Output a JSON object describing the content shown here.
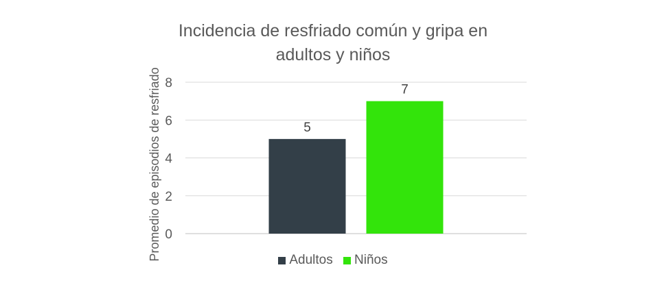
{
  "chart_data": {
    "type": "bar",
    "title_lines": [
      "Incidencia de resfriado común y gripa en",
      "adultos y niños"
    ],
    "xlabel": "",
    "ylabel": "Promedio de episodios de resfriado",
    "categories": [
      "Adultos",
      "Niños"
    ],
    "values": [
      5,
      7
    ],
    "colors": [
      "#333f48",
      "#33e40b"
    ],
    "ylim": [
      0,
      8
    ],
    "yticks": [
      "0",
      "2",
      "4",
      "6",
      "8"
    ],
    "data_labels": [
      "5",
      "7"
    ],
    "grid": true,
    "legend_position": "bottom",
    "legend": [
      "Adultos",
      "Niños"
    ]
  }
}
